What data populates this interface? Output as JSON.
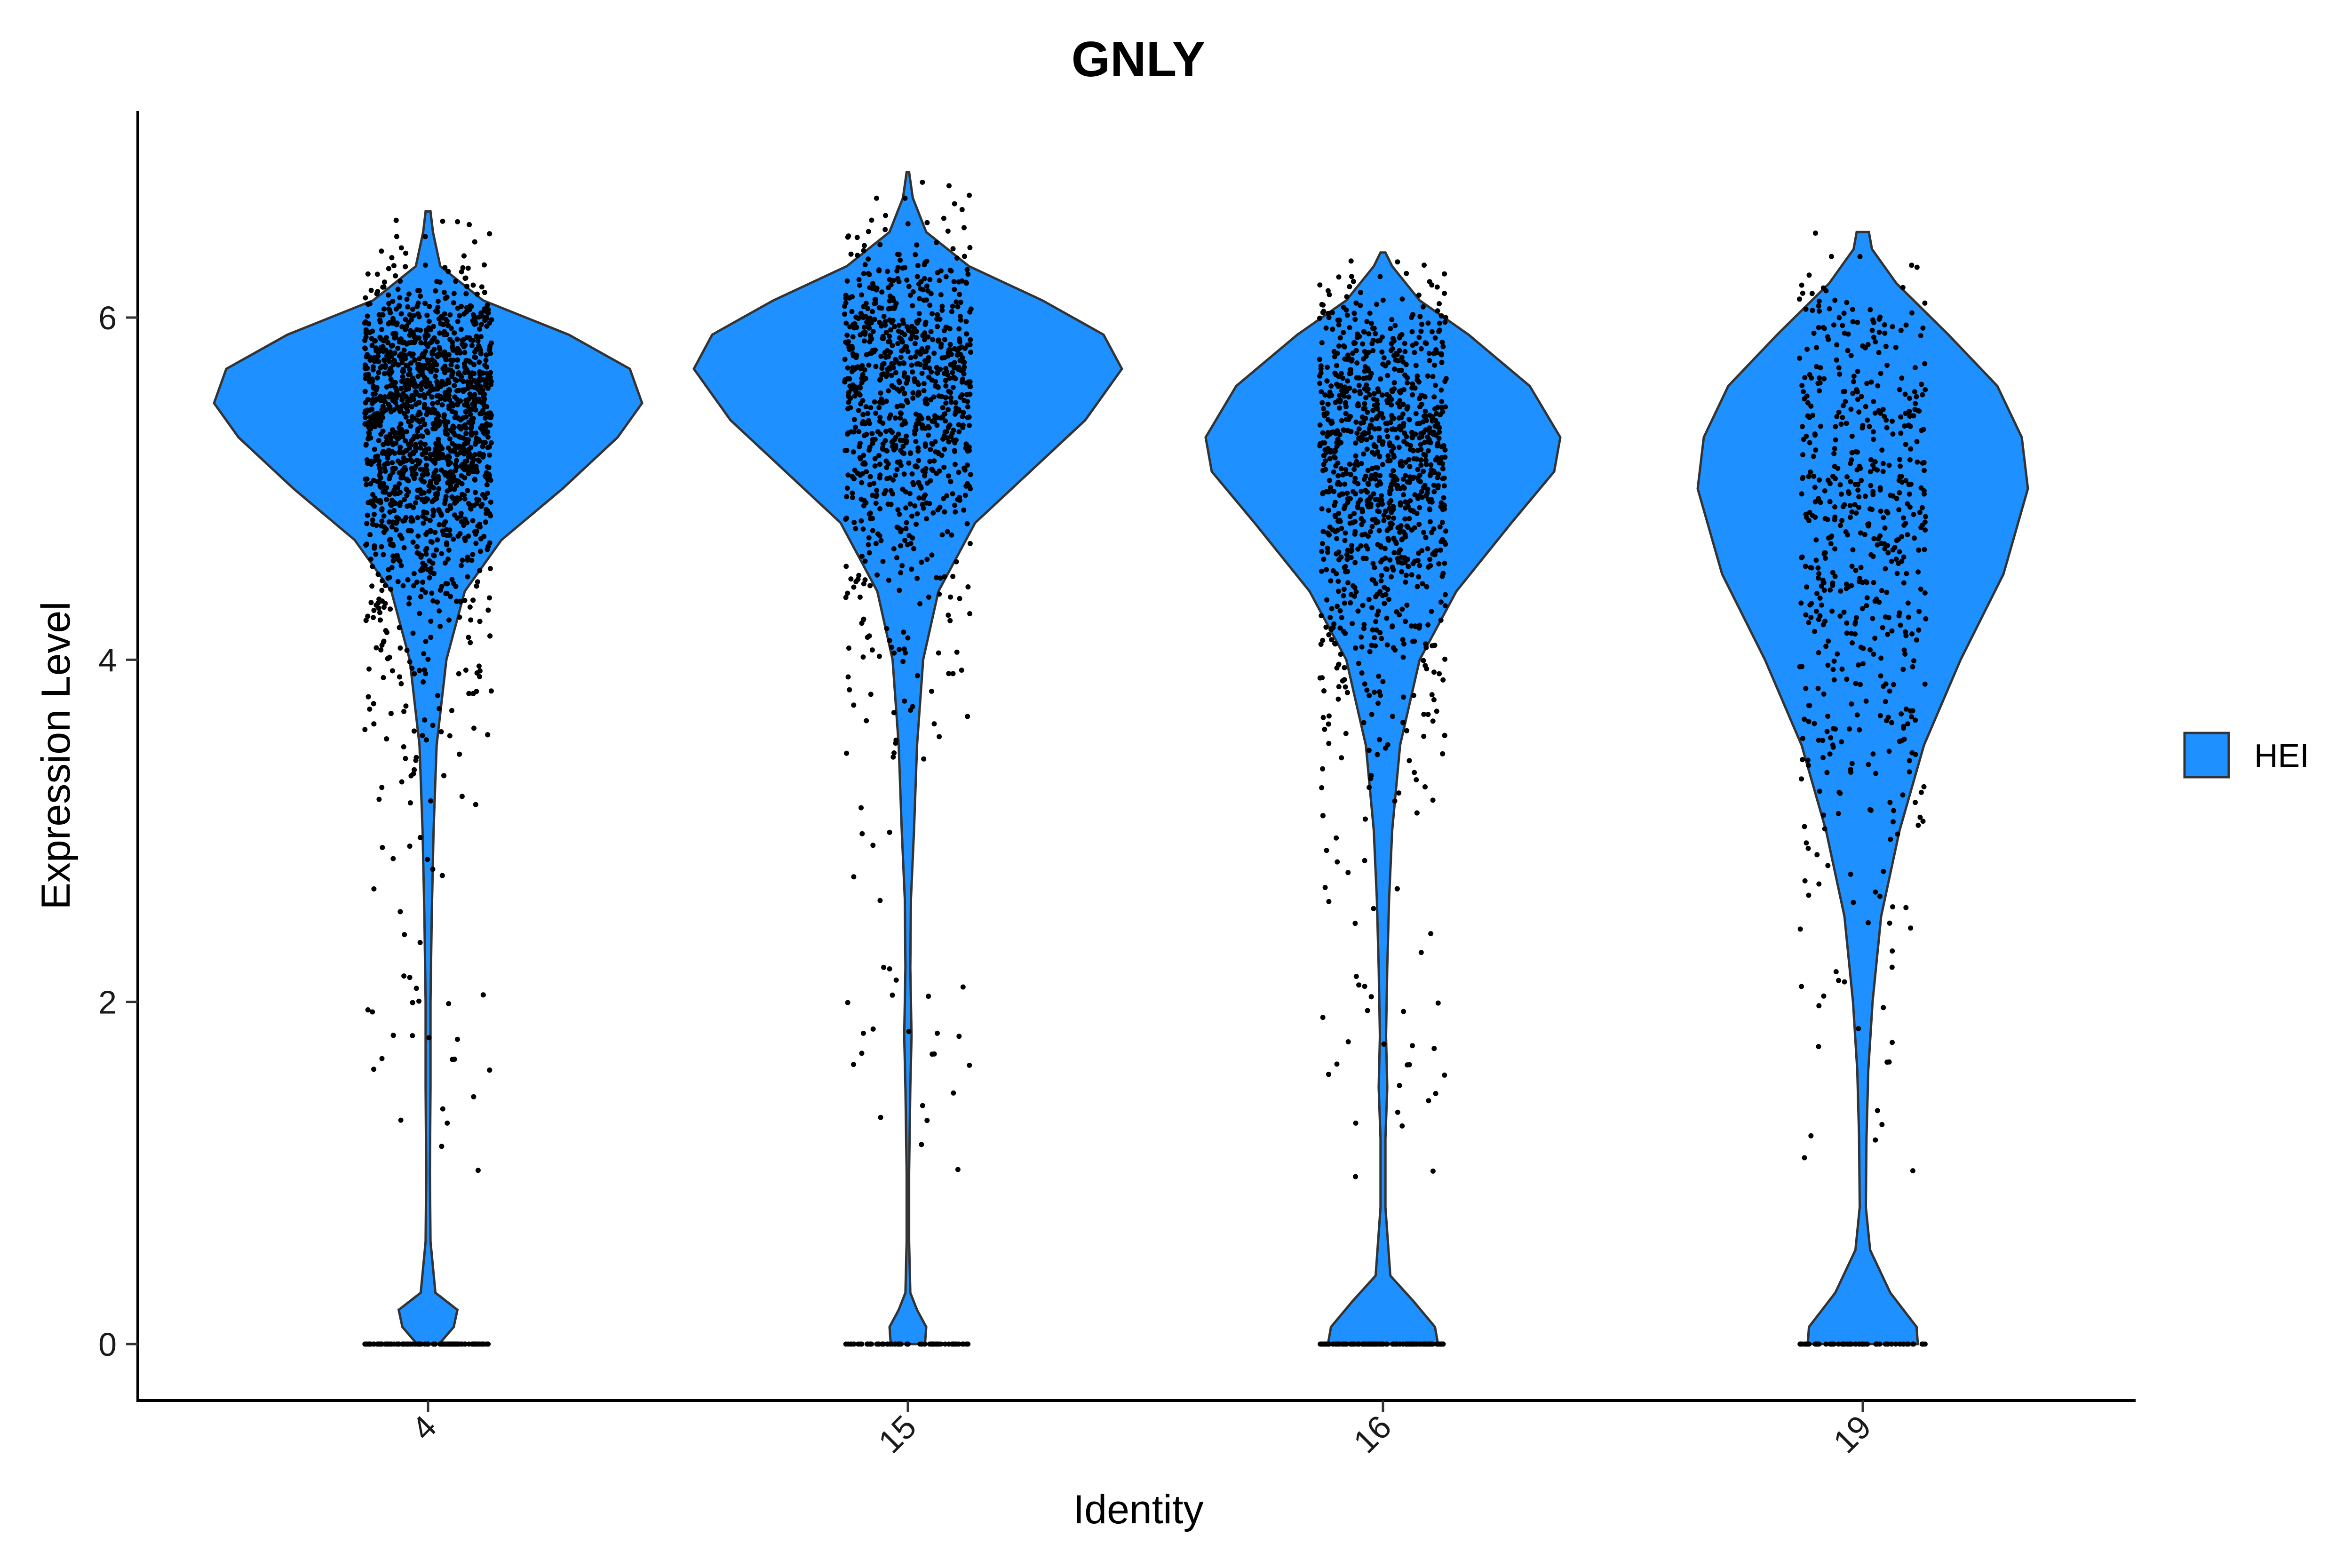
{
  "chart_data": {
    "type": "violin",
    "title": "GNLY",
    "xlabel": "Identity",
    "ylabel": "Expression Level",
    "categories": [
      "4",
      "15",
      "16",
      "19"
    ],
    "y_ticks": [
      0,
      2,
      4,
      6
    ],
    "ylim": [
      -0.34,
      7.2
    ],
    "grid": false,
    "legend_position": "right",
    "series": [
      {
        "name": "HEI",
        "color": "#1E90FF",
        "groups": [
          {
            "category": "4",
            "max": 6.62,
            "density": [
              [
                0,
                0.018
              ],
              [
                0.1,
                0.042
              ],
              [
                0.2,
                0.048
              ],
              [
                0.3,
                0.012
              ],
              [
                0.6,
                0.004
              ],
              [
                1.0,
                0.003
              ],
              [
                1.5,
                0.004
              ],
              [
                2.0,
                0.004
              ],
              [
                2.5,
                0.006
              ],
              [
                3.0,
                0.009
              ],
              [
                3.5,
                0.014
              ],
              [
                4.0,
                0.03
              ],
              [
                4.4,
                0.06
              ],
              [
                4.7,
                0.12
              ],
              [
                5.0,
                0.22
              ],
              [
                5.3,
                0.31
              ],
              [
                5.5,
                0.35
              ],
              [
                5.7,
                0.33
              ],
              [
                5.9,
                0.23
              ],
              [
                6.1,
                0.09
              ],
              [
                6.3,
                0.02
              ],
              [
                6.5,
                0.008
              ],
              [
                6.62,
                0.004
              ]
            ],
            "dot_count": 2200
          },
          {
            "category": "15",
            "max": 6.85,
            "density": [
              [
                0,
                0.028
              ],
              [
                0.1,
                0.03
              ],
              [
                0.2,
                0.015
              ],
              [
                0.3,
                0.004
              ],
              [
                0.6,
                0.002
              ],
              [
                1.0,
                0.002
              ],
              [
                1.5,
                0.004
              ],
              [
                1.8,
                0.006
              ],
              [
                2.2,
                0.004
              ],
              [
                2.6,
                0.005
              ],
              [
                3.0,
                0.01
              ],
              [
                3.5,
                0.015
              ],
              [
                4.0,
                0.025
              ],
              [
                4.4,
                0.05
              ],
              [
                4.8,
                0.11
              ],
              [
                5.1,
                0.2
              ],
              [
                5.4,
                0.29
              ],
              [
                5.7,
                0.35
              ],
              [
                5.9,
                0.32
              ],
              [
                6.1,
                0.22
              ],
              [
                6.3,
                0.1
              ],
              [
                6.5,
                0.03
              ],
              [
                6.7,
                0.008
              ],
              [
                6.85,
                0.002
              ]
            ],
            "dot_count": 1000
          },
          {
            "category": "16",
            "max": 6.38,
            "density": [
              [
                0,
                0.09
              ],
              [
                0.1,
                0.085
              ],
              [
                0.25,
                0.05
              ],
              [
                0.4,
                0.012
              ],
              [
                0.8,
                0.004
              ],
              [
                1.2,
                0.004
              ],
              [
                1.5,
                0.007
              ],
              [
                1.8,
                0.005
              ],
              [
                2.2,
                0.007
              ],
              [
                2.6,
                0.01
              ],
              [
                3.0,
                0.015
              ],
              [
                3.5,
                0.028
              ],
              [
                4.0,
                0.06
              ],
              [
                4.4,
                0.12
              ],
              [
                4.8,
                0.21
              ],
              [
                5.1,
                0.28
              ],
              [
                5.3,
                0.29
              ],
              [
                5.6,
                0.24
              ],
              [
                5.9,
                0.14
              ],
              [
                6.1,
                0.06
              ],
              [
                6.3,
                0.015
              ],
              [
                6.38,
                0.004
              ]
            ],
            "dot_count": 1400
          },
          {
            "category": "19",
            "max": 6.5,
            "density": [
              [
                0,
                0.09
              ],
              [
                0.1,
                0.088
              ],
              [
                0.3,
                0.045
              ],
              [
                0.55,
                0.012
              ],
              [
                0.8,
                0.005
              ],
              [
                1.2,
                0.006
              ],
              [
                1.6,
                0.009
              ],
              [
                2.0,
                0.016
              ],
              [
                2.5,
                0.03
              ],
              [
                3.0,
                0.06
              ],
              [
                3.5,
                0.1
              ],
              [
                4.0,
                0.16
              ],
              [
                4.5,
                0.23
              ],
              [
                5.0,
                0.27
              ],
              [
                5.3,
                0.26
              ],
              [
                5.6,
                0.22
              ],
              [
                5.9,
                0.14
              ],
              [
                6.2,
                0.055
              ],
              [
                6.4,
                0.015
              ],
              [
                6.5,
                0.01
              ]
            ],
            "dot_count": 650
          }
        ]
      }
    ]
  }
}
